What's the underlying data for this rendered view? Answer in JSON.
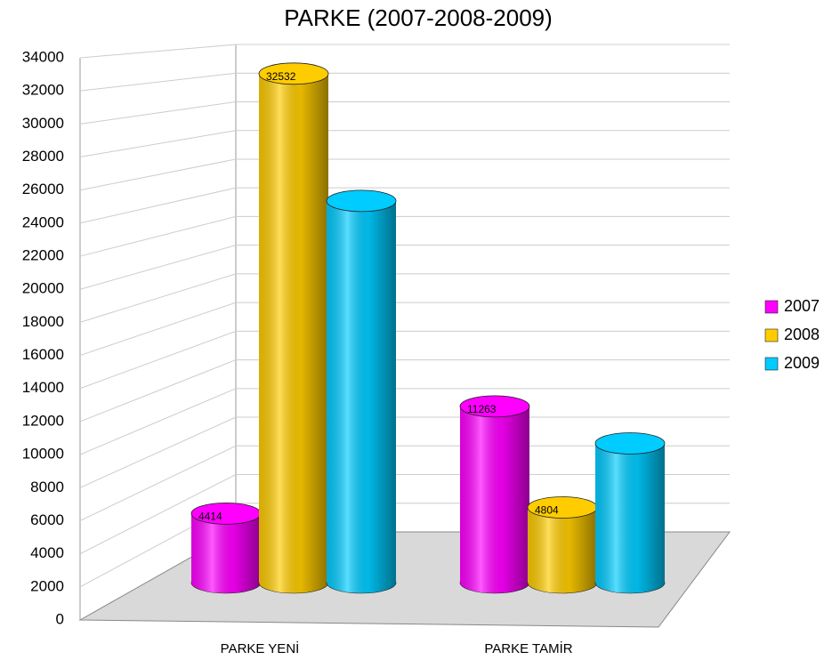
{
  "chart_data": {
    "type": "bar",
    "title": "PARKE (2007-2008-2009)",
    "categories": [
      "PARKE YENİ",
      "PARKE TAMİR"
    ],
    "series": [
      {
        "name": "2007",
        "color": "#ff00ff",
        "values": [
          4414,
          11263
        ],
        "value_labels": [
          "4414",
          "11263"
        ]
      },
      {
        "name": "2008",
        "color": "#ffcc00",
        "values": [
          32532,
          4804
        ],
        "value_labels": [
          "32532",
          "4804"
        ]
      },
      {
        "name": "2009",
        "color": "#00ccff",
        "values": [
          24400,
          8900
        ],
        "value_labels": [
          null,
          null
        ]
      }
    ],
    "ylim": [
      0,
      34000
    ],
    "yticks": [
      0,
      2000,
      4000,
      6000,
      8000,
      10000,
      12000,
      14000,
      16000,
      18000,
      20000,
      22000,
      24000,
      26000,
      28000,
      30000,
      32000,
      34000
    ],
    "grid": true,
    "legend": "right"
  }
}
